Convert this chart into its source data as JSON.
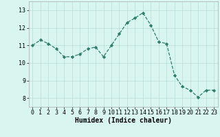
{
  "x": [
    0,
    1,
    2,
    3,
    4,
    5,
    6,
    7,
    8,
    9,
    10,
    11,
    12,
    13,
    14,
    15,
    16,
    17,
    18,
    19,
    20,
    21,
    22,
    23
  ],
  "y": [
    11.0,
    11.3,
    11.1,
    10.8,
    10.35,
    10.35,
    10.5,
    10.8,
    10.9,
    10.35,
    11.0,
    11.65,
    12.3,
    12.55,
    12.85,
    12.15,
    11.2,
    11.1,
    9.3,
    8.65,
    8.45,
    8.05,
    8.45,
    8.45
  ],
  "line_color": "#2e7d6e",
  "marker": "D",
  "marker_size": 2.2,
  "bg_color": "#d8f5f0",
  "grid_color": "#b8ddd8",
  "xlabel": "Humidex (Indice chaleur)",
  "ylim": [
    7.5,
    13.5
  ],
  "xlim": [
    -0.5,
    23.5
  ],
  "yticks": [
    8,
    9,
    10,
    11,
    12,
    13
  ],
  "xticks": [
    0,
    1,
    2,
    3,
    4,
    5,
    6,
    7,
    8,
    9,
    10,
    11,
    12,
    13,
    14,
    15,
    16,
    17,
    18,
    19,
    20,
    21,
    22,
    23
  ],
  "xlabel_fontsize": 7.0,
  "tick_fontsize": 6.0,
  "linewidth": 0.9
}
